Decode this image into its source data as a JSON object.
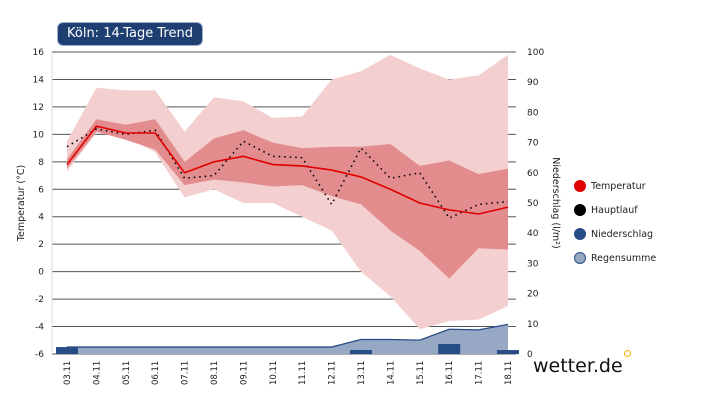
{
  "title": "Köln: 14-Tage Trend",
  "logo": "wetter.de",
  "colors": {
    "temperature": "#e00000",
    "hauptlauf": "#000000",
    "niederschlag": "#264d85",
    "regensumme": "#96a8c4",
    "band_inner": "#e28c8e",
    "band_outer": "#f4cfd0"
  },
  "legend": [
    {
      "label": "Temperatur",
      "color": "#e00000"
    },
    {
      "label": "Hauptlauf",
      "color": "#000000"
    },
    {
      "label": "Niederschlag",
      "color": "#264d85"
    },
    {
      "label": "Regensumme",
      "color": "#96a8c4"
    }
  ],
  "chart_data": {
    "type": "line",
    "ylabel": "Temperatur (°C)",
    "y2label": "Niederschlag (l/m²)",
    "ylim": [
      -6,
      16
    ],
    "y2lim": [
      0,
      100
    ],
    "yticks": [
      -6,
      -4,
      -2,
      0,
      2,
      4,
      6,
      8,
      10,
      12,
      14,
      16
    ],
    "y2ticks": [
      0,
      10,
      20,
      30,
      40,
      50,
      60,
      70,
      80,
      90,
      100
    ],
    "grid": true,
    "legend_position": "right",
    "categories": [
      "03.11",
      "04.11",
      "05.11",
      "06.11",
      "07.11",
      "08.11",
      "09.11",
      "10.11",
      "11.11",
      "12.11",
      "13.11",
      "14.11",
      "15.11",
      "16.11",
      "17.11",
      "18.11"
    ],
    "series": [
      {
        "name": "Temperatur",
        "values": [
          7.8,
          10.6,
          10.1,
          10.1,
          7.2,
          8.0,
          8.4,
          7.8,
          7.7,
          7.4,
          6.9,
          6.0,
          5.0,
          4.5,
          4.2,
          4.7
        ]
      },
      {
        "name": "Hauptlauf",
        "values": [
          9.1,
          10.4,
          10.0,
          10.3,
          6.8,
          7.0,
          9.5,
          8.4,
          8.3,
          4.9,
          9.0,
          6.8,
          7.2,
          3.9,
          4.9,
          5.1
        ]
      },
      {
        "name": "Niederschlag",
        "axis": "y2",
        "values": [
          2.3,
          0,
          0,
          0,
          0,
          0,
          0,
          0,
          0,
          0,
          1.3,
          0,
          0,
          3.3,
          0,
          1.3
        ]
      },
      {
        "name": "Regensumme",
        "axis": "y2",
        "values": [
          2.3,
          2.3,
          2.3,
          2.3,
          2.3,
          2.3,
          2.3,
          2.3,
          2.3,
          2.3,
          4.8,
          4.8,
          4.6,
          8.2,
          8.0,
          9.8
        ]
      }
    ],
    "band_inner": {
      "upper": [
        8.2,
        11.1,
        10.7,
        11.1,
        8.0,
        9.7,
        10.3,
        9.4,
        9.0,
        9.1,
        9.1,
        9.3,
        7.7,
        8.1,
        7.1,
        7.5
      ],
      "lower": [
        7.5,
        10.2,
        9.6,
        8.9,
        6.3,
        6.7,
        6.5,
        6.2,
        6.3,
        5.5,
        4.9,
        3.0,
        1.5,
        -0.5,
        1.7,
        1.6
      ]
    },
    "band_outer": {
      "upper": [
        9.5,
        13.4,
        13.2,
        13.2,
        10.2,
        12.7,
        12.4,
        11.2,
        11.3,
        14.0,
        14.6,
        15.8,
        14.8,
        14.0,
        14.3,
        15.8
      ],
      "lower": [
        7.3,
        10.1,
        9.8,
        8.7,
        5.4,
        6.0,
        5.0,
        5.0,
        4.0,
        3.0,
        0,
        -1.8,
        -4.2,
        -3.6,
        -3.5,
        -2.5
      ]
    }
  }
}
